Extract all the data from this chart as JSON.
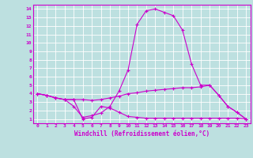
{
  "xlabel": "Windchill (Refroidissement éolien,°C)",
  "bg_color": "#bde0e0",
  "line_color": "#cc00cc",
  "grid_color": "#ffffff",
  "xlim": [
    -0.5,
    23.5
  ],
  "ylim": [
    0.5,
    14.5
  ],
  "xticks": [
    0,
    1,
    2,
    3,
    4,
    5,
    6,
    7,
    8,
    9,
    10,
    11,
    12,
    13,
    14,
    15,
    16,
    17,
    18,
    19,
    20,
    21,
    22,
    23
  ],
  "yticks": [
    1,
    2,
    3,
    4,
    5,
    6,
    7,
    8,
    9,
    10,
    11,
    12,
    13,
    14
  ],
  "series": [
    [
      4.0,
      3.8,
      3.5,
      3.3,
      3.3,
      3.3,
      3.2,
      3.3,
      3.5,
      3.7,
      4.0,
      4.1,
      4.3,
      4.4,
      4.5,
      4.6,
      4.7,
      4.7,
      4.8,
      5.0,
      3.8,
      2.5,
      1.8,
      1.0
    ],
    [
      4.0,
      3.8,
      3.5,
      3.3,
      2.5,
      1.2,
      1.4,
      1.7,
      2.5,
      4.3,
      6.8,
      12.2,
      13.8,
      14.0,
      13.6,
      13.2,
      11.5,
      7.5,
      5.0,
      5.0,
      3.8,
      2.5,
      1.8,
      1.0
    ],
    [
      4.0,
      3.8,
      3.5,
      3.3,
      3.3,
      1.0,
      1.2,
      2.5,
      2.3,
      1.8,
      1.3,
      1.2,
      1.1,
      1.1,
      1.1,
      1.1,
      1.1,
      1.1,
      1.1,
      1.1,
      1.1,
      1.1,
      1.1,
      1.0
    ]
  ]
}
